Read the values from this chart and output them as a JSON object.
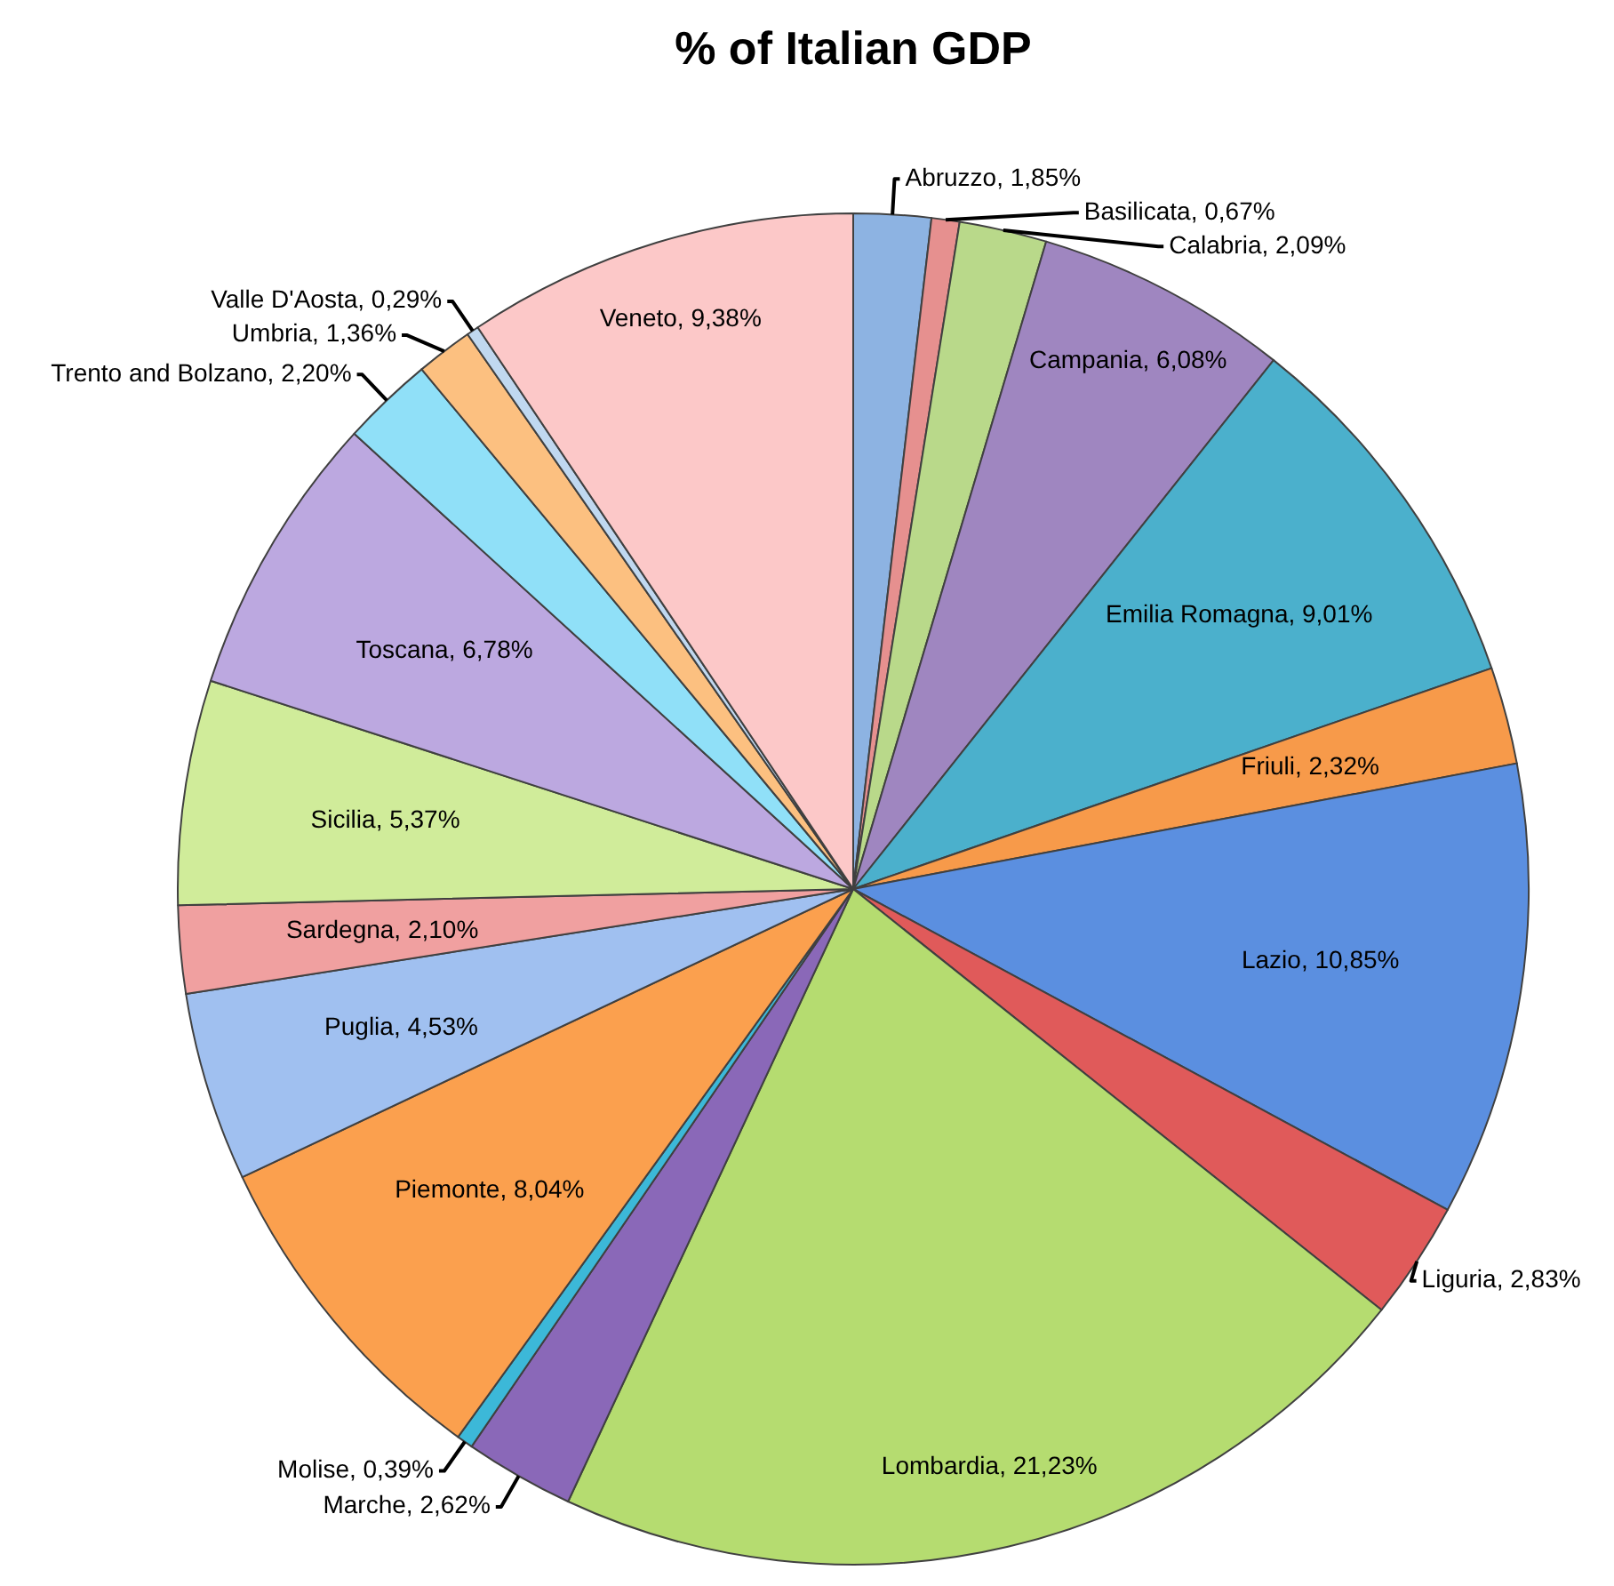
{
  "chart_data": {
    "type": "pie",
    "title": "% of Italian GDP",
    "categories": [
      "Abruzzo",
      "Basilicata",
      "Calabria",
      "Campania",
      "Emilia Romagna",
      "Friuli",
      "Lazio",
      "Liguria",
      "Lombardia",
      "Marche",
      "Molise",
      "Piemonte",
      "Puglia",
      "Sardegna",
      "Sicilia",
      "Toscana",
      "Trento and Bolzano",
      "Umbria",
      "Valle D'Aosta",
      "Veneto"
    ],
    "values": [
      1.85,
      0.67,
      2.09,
      6.08,
      9.01,
      2.32,
      10.85,
      2.83,
      21.23,
      2.62,
      0.39,
      8.04,
      4.53,
      2.1,
      5.37,
      6.78,
      2.2,
      1.36,
      0.29,
      9.38
    ],
    "value_labels": [
      "1,85%",
      "0,67%",
      "2,09%",
      "6,08%",
      "9,01%",
      "2,32%",
      "10,85%",
      "2,83%",
      "21,23%",
      "2,62%",
      "0,39%",
      "8,04%",
      "4,53%",
      "2,10%",
      "5,37%",
      "6,78%",
      "2,20%",
      "1,36%",
      "0,29%",
      "9,38%"
    ],
    "colors": [
      "#8db3e2",
      "#e6908f",
      "#b9d98a",
      "#9f86c0",
      "#4bb0cc",
      "#f79a4a",
      "#5b8fe0",
      "#e05a5a",
      "#b5dc70",
      "#8a68b8",
      "#3cb8d8",
      "#fba04e",
      "#a0c0f0",
      "#f0a0a0",
      "#d0ec9a",
      "#bca8e0",
      "#90e0f8",
      "#fcc080",
      "#c0d8f0",
      "#fcc8c8"
    ]
  }
}
